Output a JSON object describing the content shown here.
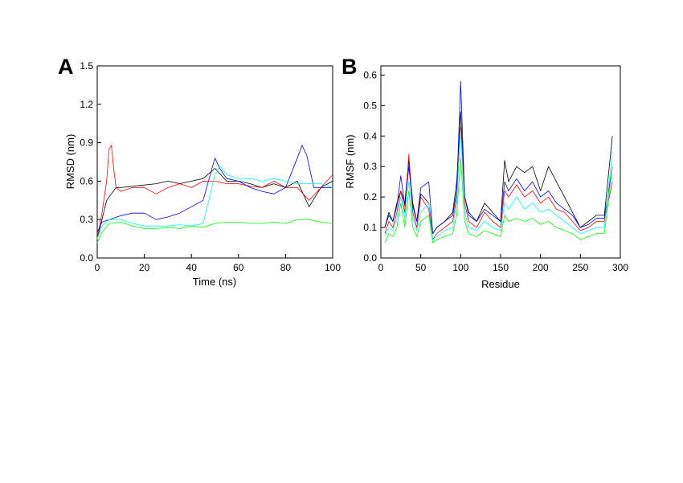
{
  "chart_data": [
    {
      "panel": "A",
      "type": "line",
      "xlabel": "Time (ns)",
      "ylabel": "RMSD (nm)",
      "xlim": [
        0,
        100
      ],
      "ylim": [
        0,
        1.5
      ],
      "xticks": [
        "0",
        "20",
        "40",
        "60",
        "80",
        "100"
      ],
      "yticks": [
        "0.0",
        "0.3",
        "0.6",
        "0.9",
        "1.2",
        "1.5"
      ],
      "grid": false,
      "series": [
        {
          "color": "#000000",
          "x": [
            0,
            2,
            4,
            6,
            8,
            10,
            15,
            20,
            25,
            30,
            35,
            40,
            45,
            50,
            55,
            60,
            65,
            70,
            75,
            80,
            85,
            90,
            95,
            100
          ],
          "y": [
            0.15,
            0.3,
            0.45,
            0.5,
            0.55,
            0.55,
            0.56,
            0.57,
            0.58,
            0.6,
            0.58,
            0.6,
            0.62,
            0.7,
            0.6,
            0.6,
            0.58,
            0.55,
            0.58,
            0.55,
            0.6,
            0.4,
            0.55,
            0.6
          ]
        },
        {
          "color": "#ff0000",
          "x": [
            0,
            2,
            4,
            5,
            6,
            7,
            8,
            10,
            15,
            20,
            25,
            30,
            35,
            40,
            45,
            50,
            55,
            60,
            65,
            70,
            75,
            80,
            85,
            90,
            95,
            100
          ],
          "y": [
            0.15,
            0.35,
            0.6,
            0.85,
            0.88,
            0.7,
            0.55,
            0.52,
            0.55,
            0.55,
            0.5,
            0.55,
            0.58,
            0.55,
            0.6,
            0.6,
            0.58,
            0.58,
            0.56,
            0.55,
            0.6,
            0.55,
            0.55,
            0.45,
            0.55,
            0.65
          ]
        },
        {
          "color": "#0000ff",
          "x": [
            0,
            2,
            5,
            10,
            15,
            20,
            25,
            30,
            35,
            40,
            45,
            48,
            50,
            52,
            55,
            60,
            65,
            70,
            75,
            80,
            85,
            87,
            89,
            92,
            95,
            100
          ],
          "y": [
            0.2,
            0.28,
            0.3,
            0.33,
            0.35,
            0.35,
            0.3,
            0.32,
            0.35,
            0.4,
            0.45,
            0.65,
            0.78,
            0.7,
            0.62,
            0.6,
            0.55,
            0.52,
            0.5,
            0.55,
            0.78,
            0.88,
            0.8,
            0.55,
            0.55,
            0.55
          ]
        },
        {
          "color": "#00ffff",
          "x": [
            0,
            2,
            5,
            10,
            15,
            20,
            25,
            30,
            35,
            40,
            45,
            50,
            52,
            55,
            60,
            65,
            70,
            75,
            80,
            85,
            90,
            95,
            100
          ],
          "y": [
            0.15,
            0.25,
            0.3,
            0.3,
            0.27,
            0.25,
            0.25,
            0.25,
            0.26,
            0.25,
            0.27,
            0.65,
            0.72,
            0.65,
            0.62,
            0.62,
            0.6,
            0.62,
            0.6,
            0.58,
            0.58,
            0.58,
            0.55
          ]
        },
        {
          "color": "#00ff00",
          "x": [
            0,
            2,
            5,
            10,
            15,
            20,
            25,
            30,
            35,
            40,
            45,
            50,
            55,
            60,
            65,
            70,
            75,
            80,
            85,
            90,
            95,
            100
          ],
          "y": [
            0.12,
            0.2,
            0.27,
            0.28,
            0.25,
            0.23,
            0.23,
            0.24,
            0.23,
            0.25,
            0.24,
            0.27,
            0.28,
            0.28,
            0.27,
            0.27,
            0.28,
            0.27,
            0.3,
            0.3,
            0.28,
            0.27
          ]
        }
      ]
    },
    {
      "panel": "B",
      "type": "line",
      "xlabel": "Residue",
      "ylabel": "RMSF (nm)",
      "xlim": [
        0,
        300
      ],
      "ylim": [
        0,
        0.63
      ],
      "xticks": [
        "0",
        "50",
        "100",
        "150",
        "200",
        "250",
        "300"
      ],
      "yticks": [
        "0.0",
        "0.1",
        "0.2",
        "0.3",
        "0.4",
        "0.5",
        "0.6"
      ],
      "grid": false,
      "series": [
        {
          "color": "#000000",
          "x": [
            5,
            10,
            15,
            20,
            25,
            30,
            35,
            40,
            45,
            50,
            60,
            65,
            70,
            80,
            90,
            95,
            100,
            105,
            110,
            120,
            130,
            140,
            150,
            155,
            160,
            170,
            180,
            190,
            200,
            210,
            220,
            230,
            240,
            250,
            260,
            270,
            280,
            290
          ],
          "y": [
            0.1,
            0.15,
            0.12,
            0.18,
            0.22,
            0.18,
            0.32,
            0.18,
            0.12,
            0.21,
            0.18,
            0.08,
            0.1,
            0.12,
            0.15,
            0.25,
            0.48,
            0.2,
            0.15,
            0.12,
            0.18,
            0.15,
            0.12,
            0.32,
            0.25,
            0.3,
            0.28,
            0.3,
            0.22,
            0.3,
            0.25,
            0.2,
            0.15,
            0.1,
            0.12,
            0.14,
            0.14,
            0.4
          ]
        },
        {
          "color": "#ff0000",
          "x": [
            5,
            10,
            15,
            20,
            25,
            30,
            35,
            40,
            45,
            50,
            60,
            65,
            70,
            80,
            90,
            95,
            100,
            105,
            110,
            120,
            130,
            140,
            150,
            155,
            160,
            170,
            180,
            190,
            200,
            210,
            220,
            230,
            240,
            250,
            260,
            270,
            280,
            290
          ],
          "y": [
            0.08,
            0.12,
            0.1,
            0.15,
            0.22,
            0.15,
            0.34,
            0.15,
            0.1,
            0.2,
            0.16,
            0.06,
            0.08,
            0.1,
            0.12,
            0.2,
            0.43,
            0.18,
            0.12,
            0.1,
            0.15,
            0.12,
            0.1,
            0.22,
            0.2,
            0.24,
            0.2,
            0.22,
            0.18,
            0.2,
            0.16,
            0.15,
            0.12,
            0.09,
            0.1,
            0.12,
            0.12,
            0.25
          ]
        },
        {
          "color": "#0000ff",
          "x": [
            5,
            10,
            15,
            20,
            25,
            30,
            35,
            40,
            45,
            50,
            60,
            65,
            70,
            80,
            90,
            95,
            100,
            105,
            110,
            120,
            130,
            140,
            150,
            155,
            160,
            170,
            180,
            190,
            200,
            210,
            220,
            230,
            240,
            250,
            260,
            270,
            280,
            290
          ],
          "y": [
            0.1,
            0.14,
            0.12,
            0.17,
            0.27,
            0.17,
            0.3,
            0.17,
            0.12,
            0.23,
            0.25,
            0.08,
            0.1,
            0.12,
            0.14,
            0.22,
            0.58,
            0.2,
            0.14,
            0.12,
            0.16,
            0.14,
            0.12,
            0.25,
            0.22,
            0.26,
            0.22,
            0.25,
            0.2,
            0.22,
            0.18,
            0.16,
            0.14,
            0.1,
            0.11,
            0.13,
            0.13,
            0.3
          ]
        },
        {
          "color": "#00ffff",
          "x": [
            5,
            10,
            15,
            20,
            25,
            30,
            35,
            40,
            45,
            50,
            60,
            65,
            70,
            80,
            90,
            95,
            100,
            105,
            110,
            120,
            130,
            140,
            150,
            155,
            160,
            170,
            180,
            190,
            200,
            210,
            220,
            230,
            240,
            250,
            260,
            270,
            280,
            290
          ],
          "y": [
            0.07,
            0.1,
            0.09,
            0.13,
            0.2,
            0.13,
            0.25,
            0.13,
            0.09,
            0.15,
            0.18,
            0.06,
            0.07,
            0.09,
            0.1,
            0.18,
            0.42,
            0.15,
            0.1,
            0.09,
            0.12,
            0.1,
            0.09,
            0.18,
            0.16,
            0.2,
            0.16,
            0.18,
            0.15,
            0.16,
            0.14,
            0.12,
            0.1,
            0.08,
            0.09,
            0.1,
            0.1,
            0.35
          ]
        },
        {
          "color": "#00ff00",
          "x": [
            5,
            10,
            15,
            20,
            25,
            30,
            35,
            40,
            45,
            50,
            60,
            65,
            70,
            80,
            90,
            95,
            100,
            105,
            110,
            120,
            130,
            140,
            150,
            155,
            160,
            170,
            180,
            190,
            200,
            210,
            220,
            230,
            240,
            250,
            260,
            270,
            280,
            290
          ],
          "y": [
            0.05,
            0.08,
            0.07,
            0.1,
            0.18,
            0.1,
            0.22,
            0.1,
            0.07,
            0.12,
            0.14,
            0.05,
            0.06,
            0.07,
            0.08,
            0.14,
            0.33,
            0.12,
            0.08,
            0.07,
            0.09,
            0.08,
            0.07,
            0.14,
            0.12,
            0.13,
            0.12,
            0.13,
            0.11,
            0.12,
            0.1,
            0.09,
            0.08,
            0.06,
            0.07,
            0.08,
            0.08,
            0.3
          ]
        }
      ]
    }
  ]
}
